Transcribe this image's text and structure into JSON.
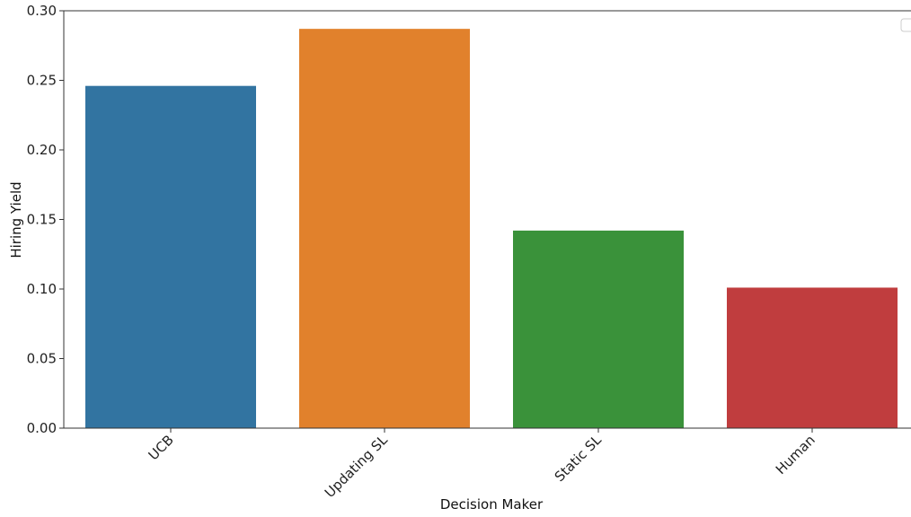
{
  "chart_data": {
    "type": "bar",
    "categories": [
      "UCB",
      "Updating SL",
      "Static SL",
      "Human"
    ],
    "values": [
      0.246,
      0.287,
      0.142,
      0.101
    ],
    "colors": [
      "#3274a1",
      "#e1812c",
      "#3a923a",
      "#c03d3e"
    ],
    "xlabel": "Decision Maker",
    "ylabel": "Hiring Yield",
    "ylim": [
      0,
      0.3
    ],
    "yticks": [
      0.0,
      0.05,
      0.1,
      0.15,
      0.2,
      0.25,
      0.3
    ],
    "ytick_labels": [
      "0.00",
      "0.05",
      "0.10",
      "0.15",
      "0.20",
      "0.25",
      "0.30"
    ],
    "legend": {
      "placement": "top-right",
      "entries": []
    },
    "grid": false
  }
}
